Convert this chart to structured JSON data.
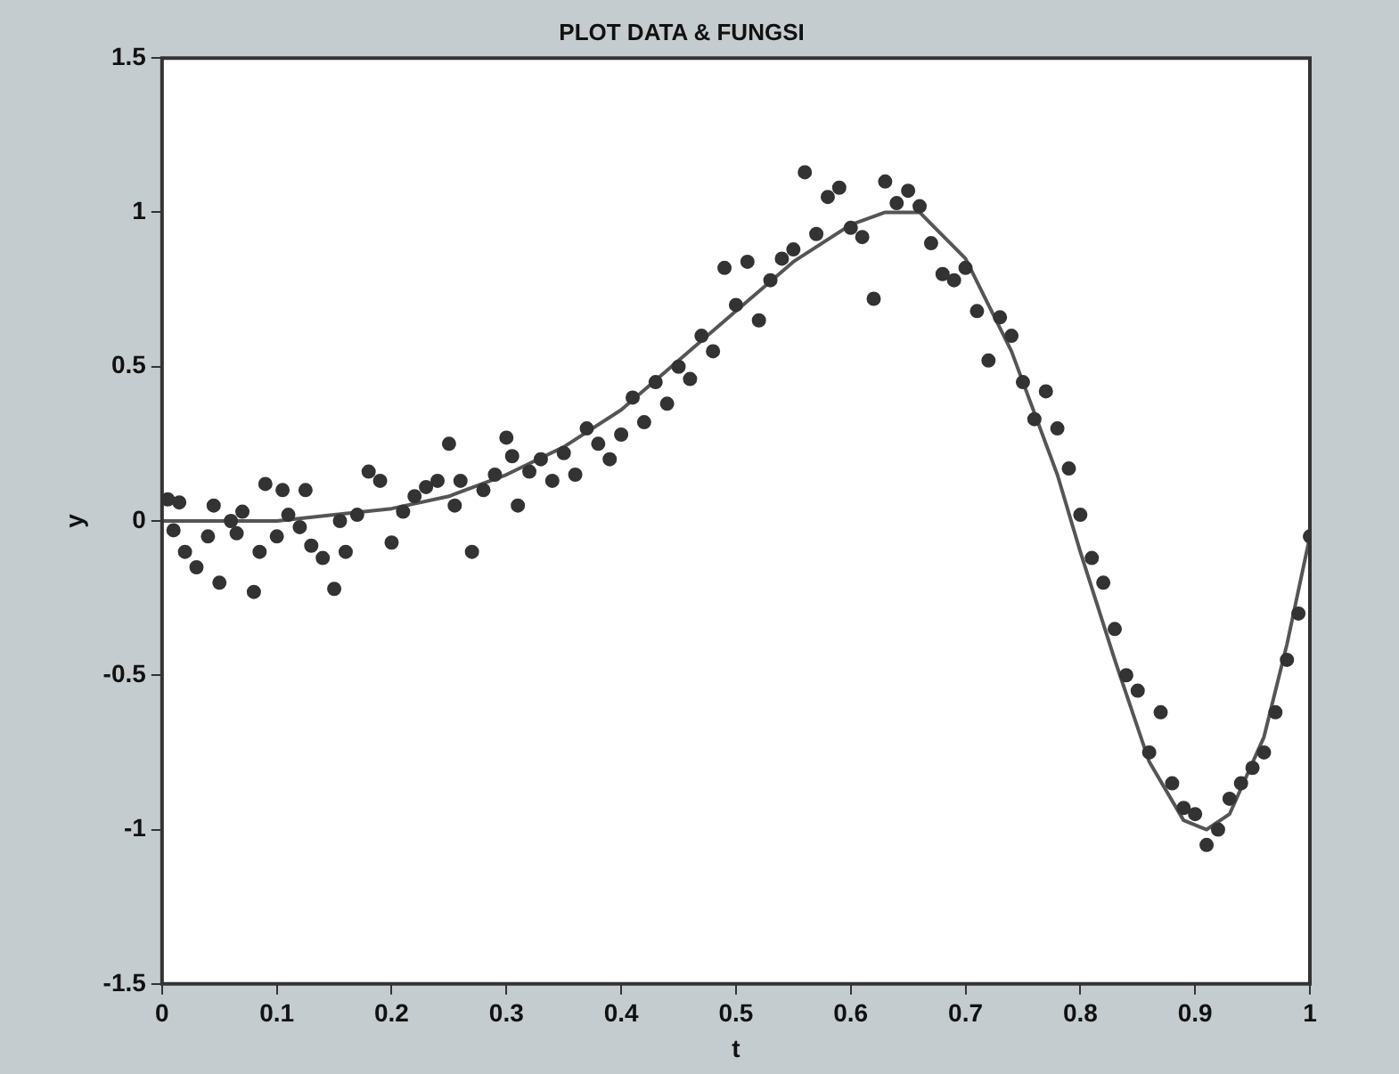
{
  "chart_data": {
    "type": "scatter",
    "title": "PLOT DATA & FUNGSI",
    "xlabel": "t",
    "ylabel": "y",
    "xlim": [
      0,
      1
    ],
    "ylim": [
      -1.5,
      1.5
    ],
    "xticks": [
      0,
      0.1,
      0.2,
      0.3,
      0.4,
      0.5,
      0.6,
      0.7,
      0.8,
      0.9,
      1
    ],
    "yticks": [
      -1.5,
      -1,
      -0.5,
      0,
      0.5,
      1,
      1.5
    ],
    "grid": false,
    "legend": false,
    "marker": "circle",
    "series": [
      {
        "color": "#333333",
        "x": [
          0.005,
          0.01,
          0.015,
          0.02,
          0.03,
          0.04,
          0.045,
          0.05,
          0.06,
          0.065,
          0.07,
          0.08,
          0.085,
          0.09,
          0.1,
          0.105,
          0.11,
          0.12,
          0.125,
          0.13,
          0.14,
          0.15,
          0.155,
          0.16,
          0.17,
          0.18,
          0.19,
          0.2,
          0.21,
          0.22,
          0.23,
          0.24,
          0.25,
          0.255,
          0.26,
          0.27,
          0.28,
          0.29,
          0.3,
          0.305,
          0.31,
          0.32,
          0.33,
          0.34,
          0.35,
          0.36,
          0.37,
          0.38,
          0.39,
          0.4,
          0.41,
          0.42,
          0.43,
          0.44,
          0.45,
          0.46,
          0.47,
          0.48,
          0.49,
          0.5,
          0.51,
          0.52,
          0.53,
          0.54,
          0.55,
          0.56,
          0.57,
          0.58,
          0.59,
          0.6,
          0.61,
          0.62,
          0.63,
          0.64,
          0.65,
          0.66,
          0.67,
          0.68,
          0.69,
          0.7,
          0.71,
          0.72,
          0.73,
          0.74,
          0.75,
          0.76,
          0.77,
          0.78,
          0.79,
          0.8,
          0.81,
          0.82,
          0.83,
          0.84,
          0.85,
          0.86,
          0.87,
          0.88,
          0.89,
          0.9,
          0.91,
          0.92,
          0.93,
          0.94,
          0.95,
          0.96,
          0.97,
          0.98,
          0.99,
          1.0
        ],
        "values": [
          0.07,
          -0.03,
          0.06,
          -0.1,
          -0.15,
          -0.05,
          0.05,
          -0.2,
          0.0,
          -0.04,
          0.03,
          -0.23,
          -0.1,
          0.12,
          -0.05,
          0.1,
          0.02,
          -0.02,
          0.1,
          -0.08,
          -0.12,
          -0.22,
          0.0,
          -0.1,
          0.02,
          0.16,
          0.13,
          -0.07,
          0.03,
          0.08,
          0.11,
          0.13,
          0.25,
          0.05,
          0.13,
          -0.1,
          0.1,
          0.15,
          0.27,
          0.21,
          0.05,
          0.16,
          0.2,
          0.13,
          0.22,
          0.15,
          0.3,
          0.25,
          0.2,
          0.28,
          0.4,
          0.32,
          0.45,
          0.38,
          0.5,
          0.46,
          0.6,
          0.55,
          0.82,
          0.7,
          0.84,
          0.65,
          0.78,
          0.85,
          0.88,
          1.13,
          0.93,
          1.05,
          1.08,
          0.95,
          0.92,
          0.72,
          1.1,
          1.03,
          1.07,
          1.02,
          0.9,
          0.8,
          0.78,
          0.82,
          0.68,
          0.52,
          0.66,
          0.6,
          0.45,
          0.33,
          0.42,
          0.3,
          0.17,
          0.02,
          -0.12,
          -0.2,
          -0.35,
          -0.5,
          -0.55,
          -0.75,
          -0.62,
          -0.85,
          -0.93,
          -0.95,
          -1.05,
          -1.0,
          -0.9,
          -0.85,
          -0.8,
          -0.75,
          -0.62,
          -0.45,
          -0.3,
          -0.05
        ]
      },
      {
        "type": "line",
        "color": "#555555",
        "marker": "none",
        "x": [
          0,
          0.05,
          0.1,
          0.15,
          0.2,
          0.25,
          0.3,
          0.35,
          0.4,
          0.45,
          0.5,
          0.55,
          0.6,
          0.63,
          0.66,
          0.7,
          0.74,
          0.78,
          0.8,
          0.83,
          0.86,
          0.89,
          0.91,
          0.93,
          0.96,
          0.98,
          1.0
        ],
        "values": [
          0,
          0,
          0,
          0.02,
          0.04,
          0.08,
          0.15,
          0.24,
          0.36,
          0.52,
          0.68,
          0.84,
          0.96,
          1.0,
          1.0,
          0.85,
          0.55,
          0.15,
          -0.1,
          -0.45,
          -0.78,
          -0.97,
          -1.0,
          -0.95,
          -0.7,
          -0.4,
          -0.05
        ]
      }
    ]
  }
}
